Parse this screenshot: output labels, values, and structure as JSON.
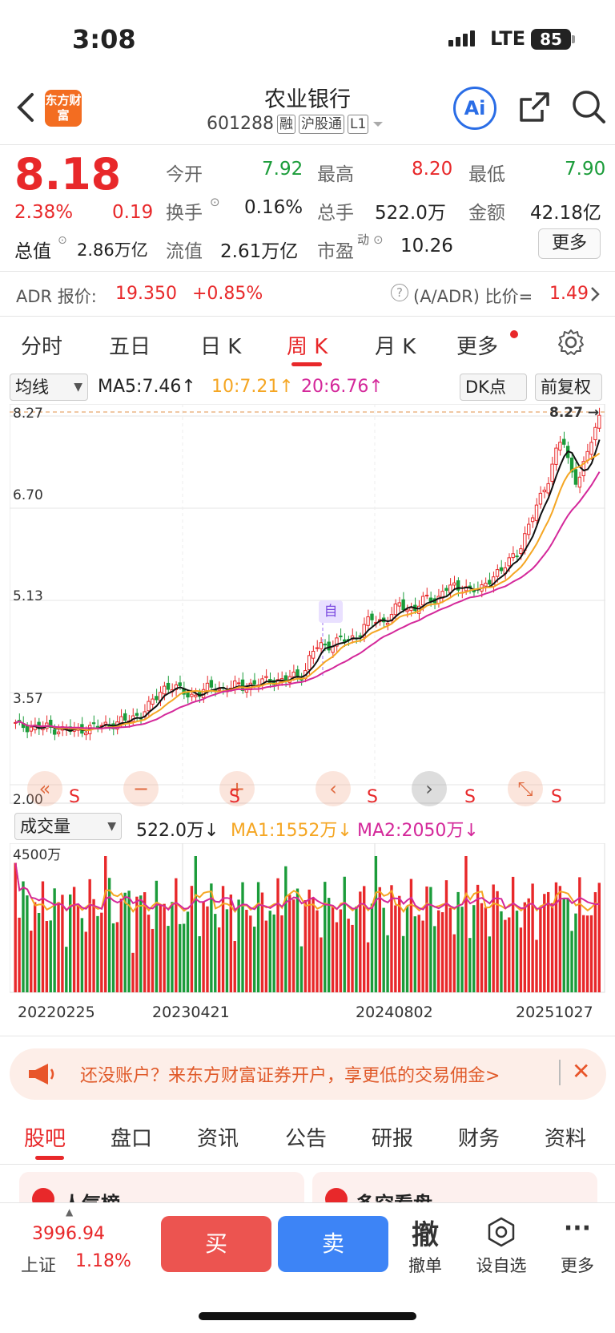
{
  "status": {
    "time": "3:08",
    "network": "LTE",
    "battery": "85"
  },
  "header": {
    "logo_text": "东方财富",
    "stock_name": "农业银行",
    "stock_code": "601288",
    "tags": [
      "融",
      "沪股通",
      "L1"
    ],
    "ai_label": "Ai"
  },
  "quote": {
    "price": "8.18",
    "change_pct": "2.38%",
    "change_amt": "0.19",
    "total_value_label": "总值",
    "total_value": "2.86万亿",
    "open_label": "今开",
    "open": "7.92",
    "high_label": "最高",
    "high": "8.20",
    "low_label": "最低",
    "low": "7.90",
    "turnover_label": "换手",
    "turnover": "0.16%",
    "volume_label": "总手",
    "volume": "522.0万",
    "amount_label": "金额",
    "amount": "42.18亿",
    "float_label": "流值",
    "float": "2.61万亿",
    "pe_label": "市盈",
    "pe_sup": "动",
    "pe": "10.26",
    "more_label": "更多"
  },
  "adr": {
    "label": "ADR 报价:",
    "price": "19.350",
    "change": "+0.85%",
    "ratio_label": "(A/ADR) 比价=",
    "ratio": "1.49"
  },
  "tabs": [
    {
      "label": "分时"
    },
    {
      "label": "五日"
    },
    {
      "label": "日 K"
    },
    {
      "label": "周 K"
    },
    {
      "label": "月 K"
    },
    {
      "label": "更多"
    }
  ],
  "chart_controls": {
    "ma_dropdown": "均线",
    "ma5": "MA5:7.46↑",
    "ma10": "10:7.21↑",
    "ma20": "20:6.76↑",
    "dk_label": "DK点",
    "adjust_label": "前复权",
    "vol_dropdown": "成交量",
    "vol_value": "522.0万↓",
    "vol_ma1": "MA1:1552万↓",
    "vol_ma2": "MA2:2050万↓",
    "vol_max": "4500万",
    "self_marker": "自",
    "signal_s": "S"
  },
  "chart_data": {
    "type": "candlestick",
    "yticks": [
      "8.27",
      "6.70",
      "5.13",
      "3.57",
      "2.00"
    ],
    "ylim": [
      2.0,
      8.27
    ],
    "last_high_marker": "8.27",
    "xticks": [
      "20220225",
      "20230421",
      "20240802",
      "20251027"
    ],
    "weekly_close": [
      2.95,
      2.93,
      2.92,
      2.9,
      2.91,
      2.89,
      2.87,
      2.86,
      2.85,
      2.88,
      2.9,
      2.92,
      2.94,
      2.97,
      3.0,
      3.02,
      3.08,
      3.15,
      3.26,
      3.4,
      3.58,
      3.62,
      3.55,
      3.48,
      3.45,
      3.5,
      3.56,
      3.6,
      3.55,
      3.58,
      3.62,
      3.6,
      3.64,
      3.66,
      3.7,
      3.72,
      3.7,
      3.75,
      3.78,
      3.82,
      4.15,
      4.3,
      4.28,
      4.35,
      4.4,
      4.38,
      4.45,
      4.6,
      4.75,
      4.7,
      4.72,
      4.85,
      5.0,
      4.9,
      4.95,
      5.05,
      5.1,
      5.05,
      5.3,
      5.28,
      5.25,
      5.3,
      5.26,
      5.22,
      5.4,
      5.55,
      5.6,
      5.75,
      5.9,
      6.2,
      6.5,
      6.8,
      7.1,
      7.55,
      7.85,
      7.3,
      7.1,
      7.4,
      7.8,
      8.18
    ],
    "ma5_last": 7.46,
    "ma10_last": 7.21,
    "ma20_last": 6.76,
    "volume_max": 4500,
    "volume_unit": "万"
  },
  "promo": {
    "text": "还没账户？来东方财富证券开户，享更低的交易佣金>"
  },
  "bottom_tabs": [
    {
      "label": "股吧"
    },
    {
      "label": "盘口"
    },
    {
      "label": "资讯"
    },
    {
      "label": "公告"
    },
    {
      "label": "研报"
    },
    {
      "label": "财务"
    },
    {
      "label": "资料"
    }
  ],
  "peek": {
    "left": "人气榜",
    "right": "多空看盘"
  },
  "footer": {
    "index_value": "3996.94",
    "index_name": "上证",
    "index_change": "1.18%",
    "buy_label": "买",
    "sell_label": "卖",
    "cancel_glyph": "撤",
    "cancel_label": "撤单",
    "watch_label": "设自选",
    "more_label": "更多"
  }
}
